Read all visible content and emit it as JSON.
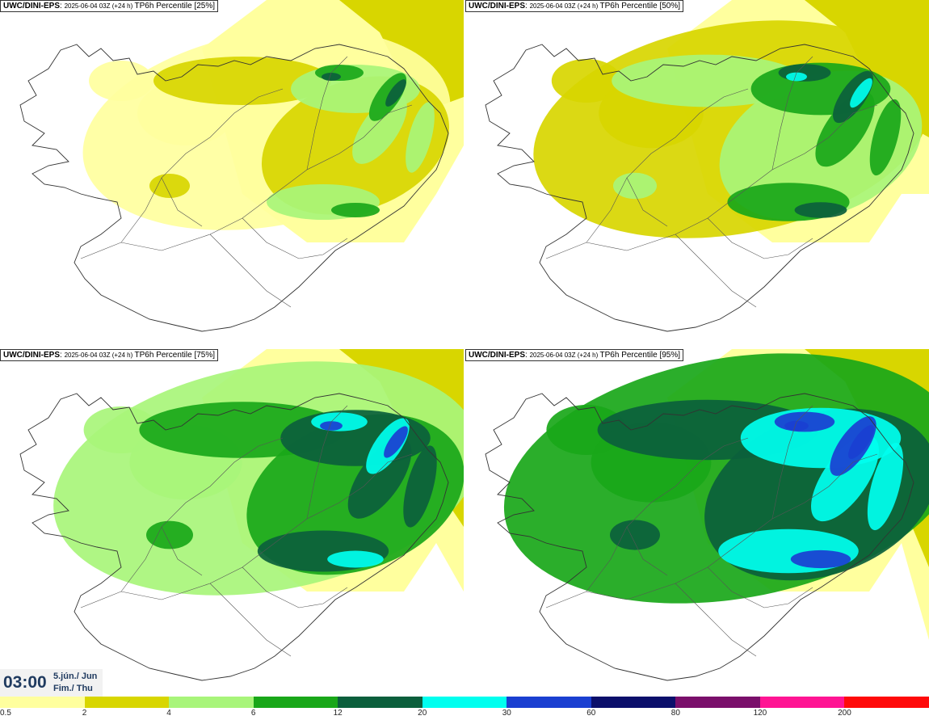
{
  "panels": [
    {
      "model": "UWC/DINI-EPS",
      "run": "2025-06-04 03Z (+24 h)",
      "variable": "TP6h Percentile",
      "level": "[25%]",
      "intensity": 0
    },
    {
      "model": "UWC/DINI-EPS",
      "run": "2025-06-04 03Z (+24 h)",
      "variable": "TP6h Percentile",
      "level": "[50%]",
      "intensity": 1
    },
    {
      "model": "UWC/DINI-EPS",
      "run": "2025-06-04 03Z (+24 h)",
      "variable": "TP6h Percentile",
      "level": "[75%]",
      "intensity": 2
    },
    {
      "model": "UWC/DINI-EPS",
      "run": "2025-06-04 03Z (+24 h)",
      "variable": "TP6h Percentile",
      "level": "[95%]",
      "intensity": 3
    }
  ],
  "valid_time": {
    "hour": "03:00",
    "date_line1": "5.jún./ Jun",
    "date_line2": "Fim./ Thu"
  },
  "legend": {
    "tick_labels": [
      "0.5",
      "2",
      "4",
      "6",
      "12",
      "20",
      "30",
      "60",
      "80",
      "120",
      "200"
    ],
    "colors": [
      "#ffff9e",
      "#d8d600",
      "#a8f57a",
      "#19a719",
      "#0b5f3c",
      "#00ffef",
      "#1a3fd1",
      "#0b0f6b",
      "#7a0f6b",
      "#ff1493",
      "#ff0a0a"
    ]
  }
}
